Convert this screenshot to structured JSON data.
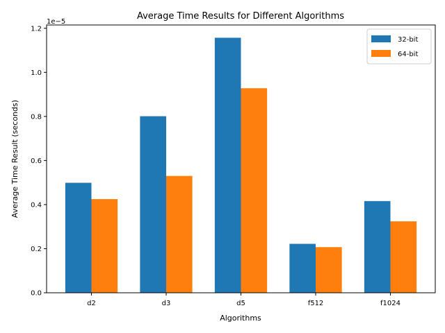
{
  "chart_data": {
    "type": "bar",
    "title": "Average Time Results for Different Algorithms",
    "xlabel": "Algorithms",
    "ylabel": "Average Time Result (seconds)",
    "scale_label": "1e−5",
    "categories": [
      "d2",
      "d3",
      "d5",
      "f512",
      "f1024"
    ],
    "series": [
      {
        "name": "32-bit",
        "color": "#1f77b4",
        "values": [
          0.499,
          0.801,
          1.157,
          0.222,
          0.416
        ]
      },
      {
        "name": "64-bit",
        "color": "#ff7f0e",
        "values": [
          0.425,
          0.53,
          0.928,
          0.207,
          0.324
        ]
      }
    ],
    "ylim": [
      0,
      1.215
    ],
    "yticks": [
      0.0,
      0.2,
      0.4,
      0.6,
      0.8,
      1.0,
      1.2
    ],
    "ytick_labels": [
      "0.0",
      "0.2",
      "0.4",
      "0.6",
      "0.8",
      "1.0",
      "1.2"
    ],
    "grid": false,
    "legend_position": "top-right"
  }
}
